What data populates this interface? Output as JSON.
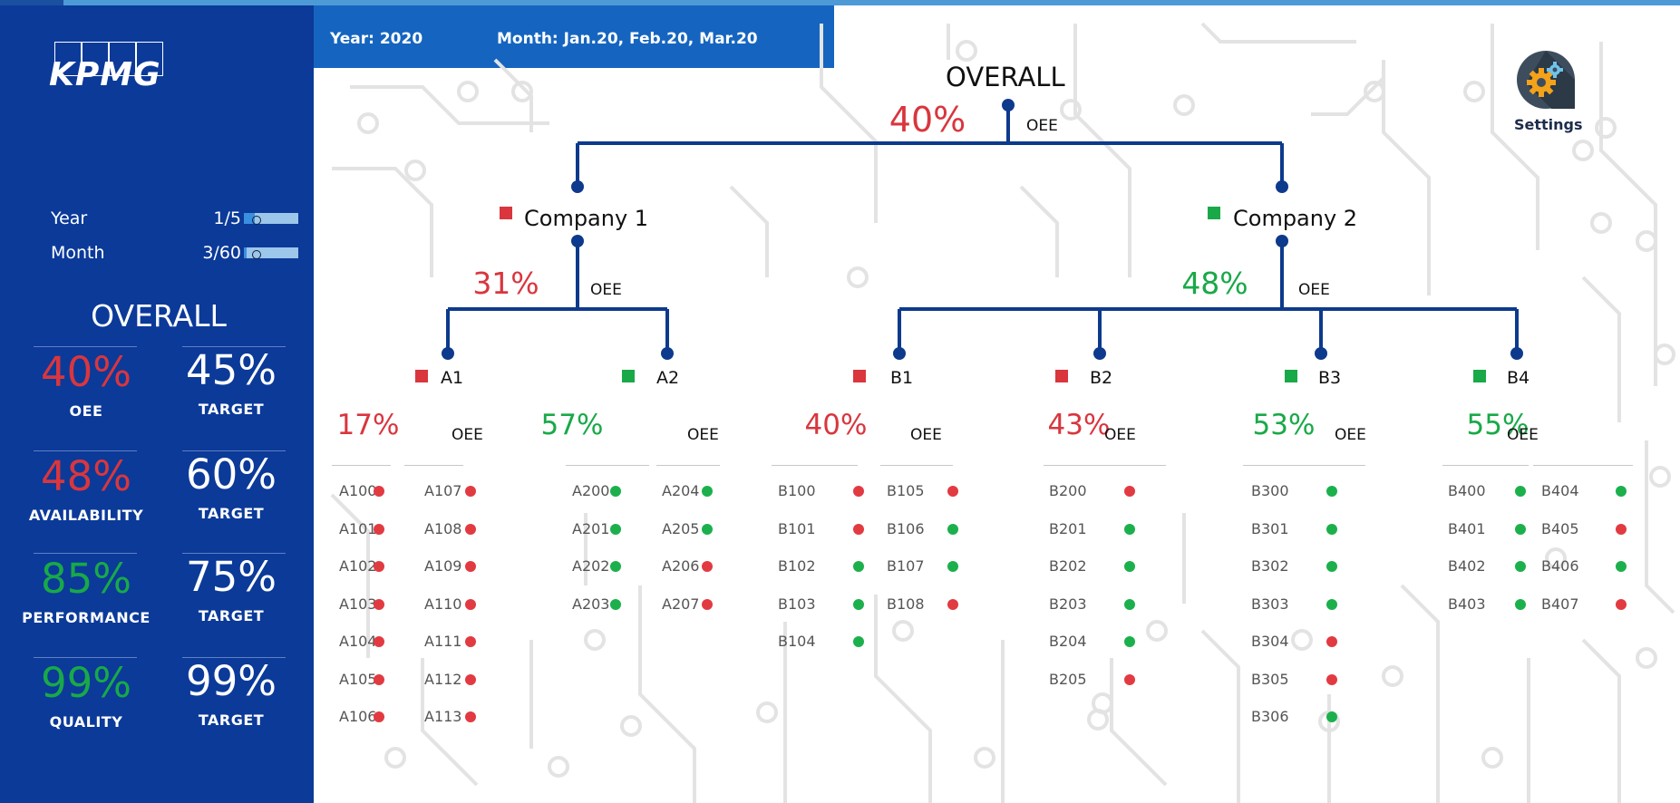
{
  "header": {
    "year_text": "Year: 2020",
    "month_text": "Month: Jan.20, Feb.20, Mar.20"
  },
  "sidebar": {
    "logo": "KPMG",
    "year_label": "Year",
    "year_value": "1/5",
    "year_progress": 0.2,
    "month_label": "Month",
    "month_value": "3/60",
    "month_progress": 0.05,
    "overall_title": "OVERALL",
    "kpis": [
      {
        "value": "40%",
        "label": "OEE",
        "target": "45%",
        "target_label": "TARGET",
        "status": "red"
      },
      {
        "value": "48%",
        "label": "AVAILABILITY",
        "target": "60%",
        "target_label": "TARGET",
        "status": "red"
      },
      {
        "value": "85%",
        "label": "PERFORMANCE",
        "target": "75%",
        "target_label": "TARGET",
        "status": "green"
      },
      {
        "value": "99%",
        "label": "QUALITY",
        "target": "99%",
        "target_label": "TARGET",
        "status": "green"
      }
    ]
  },
  "settings": {
    "label": "Settings"
  },
  "tree": {
    "root": {
      "title": "OVERALL",
      "value": "40%",
      "metric": "OEE"
    },
    "companies": [
      {
        "name": "Company 1",
        "value": "31%",
        "metric": "OEE",
        "status": "red"
      },
      {
        "name": "Company 2",
        "value": "48%",
        "metric": "OEE",
        "status": "green"
      }
    ],
    "plants": [
      {
        "name": "A1",
        "value": "17%",
        "metric": "OEE",
        "status": "red"
      },
      {
        "name": "A2",
        "value": "57%",
        "metric": "OEE",
        "status": "green"
      },
      {
        "name": "B1",
        "value": "40%",
        "metric": "OEE",
        "status": "red"
      },
      {
        "name": "B2",
        "value": "43%",
        "metric": "OEE",
        "status": "red"
      },
      {
        "name": "B3",
        "value": "53%",
        "metric": "OEE",
        "status": "green"
      },
      {
        "name": "B4",
        "value": "55%",
        "metric": "OEE",
        "status": "green"
      }
    ]
  },
  "machines": {
    "A1": [
      [
        {
          "id": "A100",
          "s": "r"
        },
        {
          "id": "A101",
          "s": "r"
        },
        {
          "id": "A102",
          "s": "r"
        },
        {
          "id": "A103",
          "s": "r"
        },
        {
          "id": "A104",
          "s": "r"
        },
        {
          "id": "A105",
          "s": "r"
        },
        {
          "id": "A106",
          "s": "r"
        }
      ],
      [
        {
          "id": "A107",
          "s": "r"
        },
        {
          "id": "A108",
          "s": "r"
        },
        {
          "id": "A109",
          "s": "r"
        },
        {
          "id": "A110",
          "s": "r"
        },
        {
          "id": "A111",
          "s": "r"
        },
        {
          "id": "A112",
          "s": "r"
        },
        {
          "id": "A113",
          "s": "r"
        }
      ]
    ],
    "A2": [
      [
        {
          "id": "A200",
          "s": "g"
        },
        {
          "id": "A201",
          "s": "g"
        },
        {
          "id": "A202",
          "s": "g"
        },
        {
          "id": "A203",
          "s": "g"
        }
      ],
      [
        {
          "id": "A204",
          "s": "g"
        },
        {
          "id": "A205",
          "s": "g"
        },
        {
          "id": "A206",
          "s": "r"
        },
        {
          "id": "A207",
          "s": "r"
        }
      ]
    ],
    "B1": [
      [
        {
          "id": "B100",
          "s": "r"
        },
        {
          "id": "B101",
          "s": "r"
        },
        {
          "id": "B102",
          "s": "g"
        },
        {
          "id": "B103",
          "s": "g"
        },
        {
          "id": "B104",
          "s": "g"
        }
      ],
      [
        {
          "id": "B105",
          "s": "r"
        },
        {
          "id": "B106",
          "s": "g"
        },
        {
          "id": "B107",
          "s": "g"
        },
        {
          "id": "B108",
          "s": "r"
        }
      ]
    ],
    "B2": [
      [
        {
          "id": "B200",
          "s": "r"
        },
        {
          "id": "B201",
          "s": "g"
        },
        {
          "id": "B202",
          "s": "g"
        },
        {
          "id": "B203",
          "s": "g"
        },
        {
          "id": "B204",
          "s": "g"
        },
        {
          "id": "B205",
          "s": "r"
        }
      ]
    ],
    "B3": [
      [
        {
          "id": "B300",
          "s": "g"
        },
        {
          "id": "B301",
          "s": "g"
        },
        {
          "id": "B302",
          "s": "g"
        },
        {
          "id": "B303",
          "s": "g"
        },
        {
          "id": "B304",
          "s": "r"
        },
        {
          "id": "B305",
          "s": "r"
        },
        {
          "id": "B306",
          "s": "g"
        }
      ]
    ],
    "B4": [
      [
        {
          "id": "B400",
          "s": "g"
        },
        {
          "id": "B401",
          "s": "g"
        },
        {
          "id": "B402",
          "s": "g"
        },
        {
          "id": "B403",
          "s": "g"
        }
      ],
      [
        {
          "id": "B404",
          "s": "g"
        },
        {
          "id": "B405",
          "s": "r"
        },
        {
          "id": "B406",
          "s": "g"
        },
        {
          "id": "B407",
          "s": "r"
        }
      ]
    ]
  },
  "colors": {
    "sidebar": "#0b3a99",
    "header": "#1565c0",
    "tree_line": "#0d3a8c",
    "red": "#d9363e",
    "green": "#19a948"
  }
}
